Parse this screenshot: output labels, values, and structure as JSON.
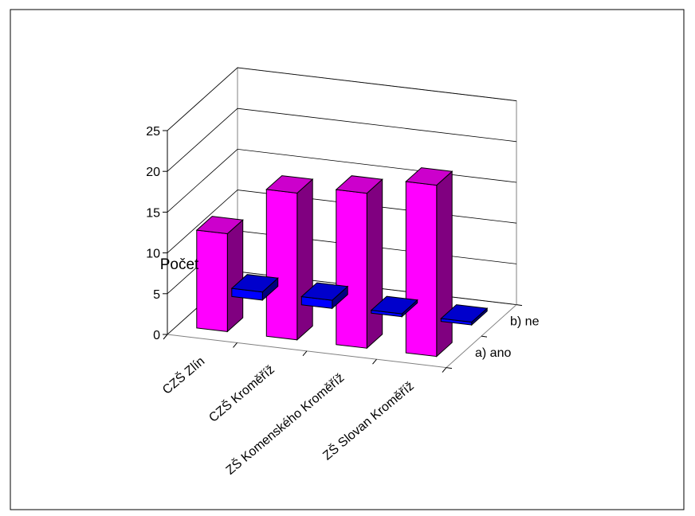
{
  "chart_data": {
    "type": "bar",
    "projection": "3d",
    "title": "",
    "ylabel": "Počet",
    "xlabel": "",
    "categories": [
      "CZŠ Zlín",
      "CZŠ Kroměříž",
      "ZŠ Komenského Kroměříž",
      "ZŠ Slovan Kroměříž"
    ],
    "series": [
      {
        "name": "a) ano",
        "values": [
          12,
          18,
          19,
          21
        ],
        "color": "#ff00ff"
      },
      {
        "name": "b) ne",
        "values": [
          1,
          1,
          0,
          0
        ],
        "color": "#0000ff"
      }
    ],
    "ylim": [
      0,
      25
    ],
    "yticks": [
      "0",
      "5",
      "10",
      "15",
      "20",
      "25"
    ],
    "grid": true,
    "legend_position": "right, on depth axis"
  }
}
